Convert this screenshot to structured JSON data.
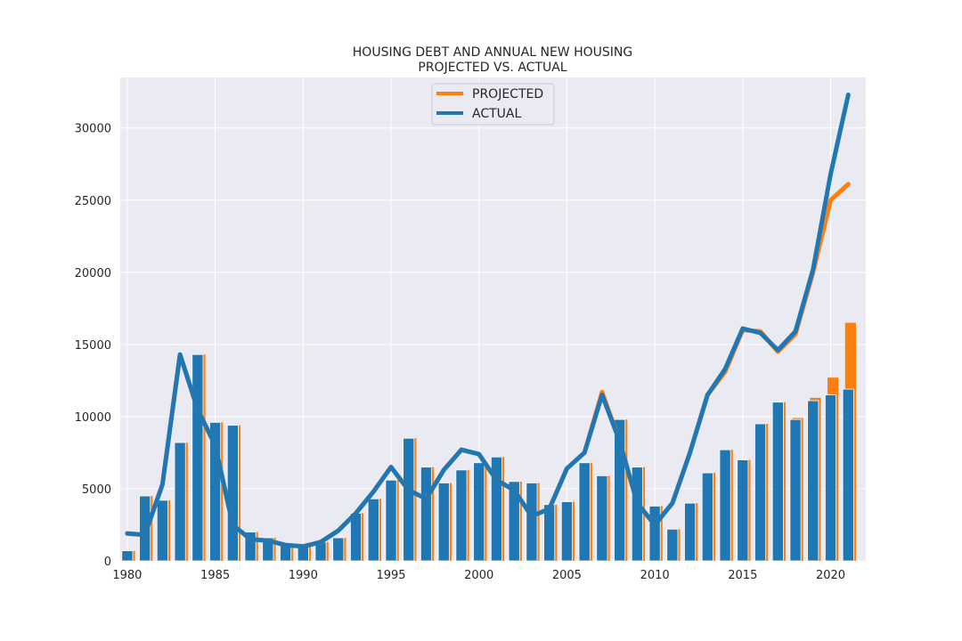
{
  "chart_data": {
    "type": "bar+line",
    "title": "HOUSING DEBT AND ANNUAL NEW HOUSING\nPROJECTED VS. ACTUAL",
    "xlabel": "",
    "ylabel": "",
    "xlim": [
      1979.6,
      2022.0
    ],
    "ylim": [
      0,
      33500
    ],
    "xticks": [
      1980,
      1985,
      1990,
      1995,
      2000,
      2005,
      2010,
      2015,
      2020
    ],
    "yticks": [
      0,
      5000,
      10000,
      15000,
      20000,
      25000,
      30000
    ],
    "grid": true,
    "legend": {
      "position": "top-center",
      "entries": [
        "PROJECTED",
        "ACTUAL"
      ]
    },
    "colors": {
      "projected": "#ff7f0e",
      "actual": "#1f77b4",
      "plot_bg": "#eaeaf2",
      "grid": "#ffffff"
    },
    "x": [
      1980,
      1981,
      1982,
      1983,
      1984,
      1985,
      1986,
      1987,
      1988,
      1989,
      1990,
      1991,
      1992,
      1993,
      1994,
      1995,
      1996,
      1997,
      1998,
      1999,
      2000,
      2001,
      2002,
      2003,
      2004,
      2005,
      2006,
      2007,
      2008,
      2009,
      2010,
      2011,
      2012,
      2013,
      2014,
      2015,
      2016,
      2017,
      2018,
      2019,
      2020,
      2021
    ],
    "bar_series": [
      {
        "name": "PROJECTED",
        "values": [
          700,
          4500,
          4200,
          8200,
          14300,
          9600,
          9400,
          2000,
          1600,
          1200,
          1100,
          1300,
          1600,
          3300,
          4300,
          5600,
          8500,
          6500,
          5400,
          6300,
          6800,
          7200,
          5500,
          5400,
          3900,
          4100,
          6800,
          5900,
          9800,
          6500,
          3800,
          2200,
          4000,
          6100,
          7700,
          7000,
          9500,
          11000,
          9900,
          11300,
          12700,
          16500
        ]
      },
      {
        "name": "ACTUAL",
        "values": [
          700,
          4500,
          4200,
          8200,
          14300,
          9600,
          9400,
          2000,
          1600,
          1200,
          1100,
          1300,
          1600,
          3300,
          4300,
          5600,
          8500,
          6500,
          5400,
          6300,
          6800,
          7200,
          5500,
          5400,
          3900,
          4100,
          6800,
          5900,
          9800,
          6500,
          3800,
          2200,
          4000,
          6100,
          7700,
          7000,
          9500,
          11000,
          9800,
          11100,
          11500,
          11900
        ]
      }
    ],
    "line_series": [
      {
        "name": "PROJECTED",
        "values": [
          1900,
          1800,
          5300,
          14300,
          10500,
          8000,
          2500,
          1500,
          1400,
          1100,
          1000,
          1300,
          2100,
          3300,
          4800,
          6500,
          4900,
          4300,
          6300,
          7700,
          7400,
          5600,
          4900,
          3100,
          3600,
          6400,
          7500,
          11700,
          8300,
          4000,
          2500,
          4000,
          7500,
          11500,
          13100,
          16000,
          15900,
          14500,
          15700,
          20000,
          25000,
          26100
        ]
      },
      {
        "name": "ACTUAL",
        "values": [
          1900,
          1800,
          5300,
          14300,
          10500,
          8000,
          2500,
          1500,
          1400,
          1100,
          1000,
          1300,
          2100,
          3300,
          4800,
          6500,
          4900,
          4300,
          6300,
          7700,
          7400,
          5600,
          4900,
          3100,
          3600,
          6400,
          7500,
          11500,
          8300,
          4000,
          2500,
          4000,
          7500,
          11500,
          13300,
          16100,
          15800,
          14600,
          15900,
          20200,
          26800,
          32300
        ]
      }
    ]
  }
}
